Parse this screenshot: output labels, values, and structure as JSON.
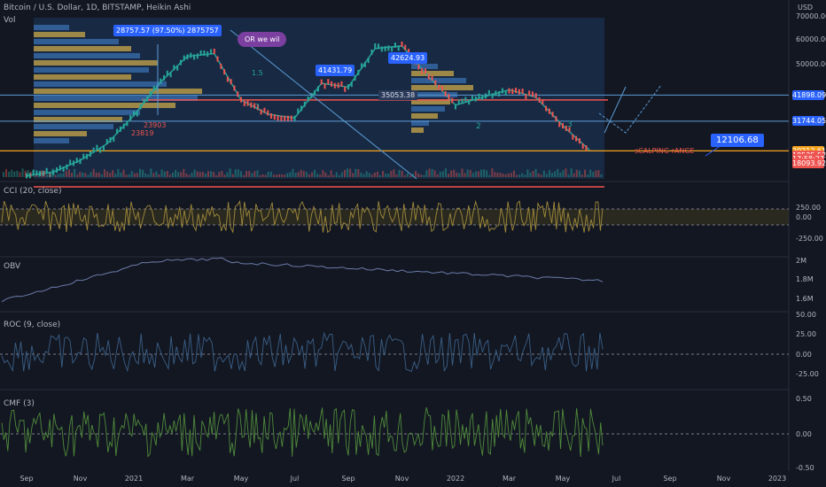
{
  "header": {
    "symbol_line": "Bitcoin / U.S. Dollar, 1D, BITSTAMP, Heikin Ashi",
    "vol_label": "Vol",
    "currency": "USD"
  },
  "panes": {
    "cci": "CCI (20, close)",
    "obv": "OBV",
    "roc": "ROC (9, close)",
    "cmf": "CMF (3)"
  },
  "colors": {
    "bg": "#131722",
    "up": "#26a69a",
    "down": "#ef5350",
    "accent_blue": "#2962ff",
    "volume_profile_gold": "#c9a84a",
    "volume_profile_blue": "#3a6fb0",
    "orange_line": "#f7a21b",
    "purple_callout": "#7b3fa0"
  },
  "price_axis": {
    "ticks": [
      "70000.00",
      "60000.00",
      "50000.00",
      "40000.00",
      "30000.00"
    ],
    "badges": [
      {
        "label": "41898.09",
        "color": "#2962ff",
        "v": 41898.09
      },
      {
        "label": "31744.05",
        "color": "#2962ff",
        "v": 31744.05
      },
      {
        "label": "20212.61",
        "color": "#f7a21b",
        "v": 20212.61
      },
      {
        "label": "18535.52",
        "color": "#ef5350",
        "v": 18535.52
      },
      {
        "label": "17:58:27",
        "color": "#ef5350",
        "v": 17150
      },
      {
        "label": "18093.92",
        "color": "#ef5350",
        "v": 15500
      }
    ]
  },
  "indicator_axes": {
    "cci": [
      "250.00",
      "0.00",
      "-250.00"
    ],
    "obv": [
      "2M",
      "1.8M",
      "1.6M"
    ],
    "roc": [
      "50.00",
      "25.00",
      "0.00",
      "-25.00"
    ],
    "cmf": [
      "0.50",
      "0.00",
      "-0.50"
    ]
  },
  "time_axis": [
    "Sep",
    "Nov",
    "2021",
    "Mar",
    "May",
    "Jul",
    "Sep",
    "Nov",
    "2022",
    "Mar",
    "May",
    "Jul",
    "Sep",
    "Nov",
    "2023"
  ],
  "annotations": {
    "range_box_label": "28757.57 (97.50%) 2875757",
    "callout_purple": "OR we  wil",
    "label_41431": "41431.79",
    "label_42624": "42624.93",
    "label_35053": "35053.38",
    "label_12106": "12106.68",
    "scalping": "sCALPING rANGE",
    "fib_labels": [
      "1.5",
      "2"
    ],
    "wave_2": "2",
    "wave_3": "3",
    "vp_low_1": "23903",
    "vp_low_2": "23819"
  },
  "chart_data": {
    "type": "line",
    "title": "Bitcoin / U.S. Dollar, 1D, BITSTAMP, Heikin Ashi",
    "x_unit": "month",
    "x": [
      "2020-09",
      "2020-10",
      "2020-11",
      "2020-12",
      "2021-01",
      "2021-02",
      "2021-03",
      "2021-04",
      "2021-05",
      "2021-06",
      "2021-07",
      "2021-08",
      "2021-09",
      "2021-10",
      "2021-11",
      "2021-12",
      "2022-01",
      "2022-02",
      "2022-03",
      "2022-04",
      "2022-05",
      "2022-06"
    ],
    "series": [
      {
        "values": [
          10500,
          12000,
          16500,
          23000,
          34000,
          47000,
          57000,
          58000,
          40000,
          34500,
          33000,
          46500,
          45000,
          60000,
          61000,
          49000,
          38000,
          41000,
          44000,
          41000,
          30000,
          20500
        ]
      }
    ],
    "horizontal_levels": [
      41898.09,
      31744.05,
      20212.61,
      40000,
      15500
    ],
    "ylim": [
      10000,
      72000
    ],
    "ylabel": "USD",
    "indicators": [
      "CCI (20, close)",
      "OBV",
      "ROC (9, close)",
      "CMF (3)"
    ]
  }
}
